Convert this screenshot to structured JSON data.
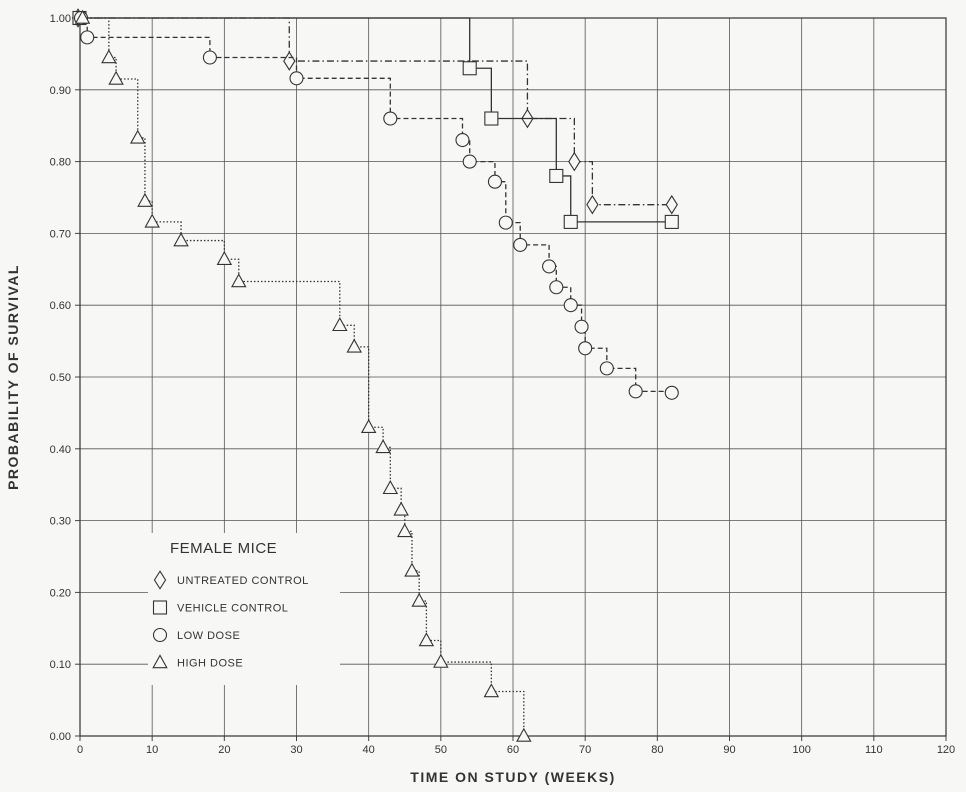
{
  "chart_data": {
    "type": "line",
    "subtype": "kaplan-meier survival step curves",
    "xlabel": "TIME ON STUDY (WEEKS)",
    "ylabel": "PROBABILITY OF SURVIVAL",
    "xlim": [
      0,
      120
    ],
    "ylim": [
      0,
      1.0
    ],
    "x_ticks": [
      "0",
      "10",
      "20",
      "30",
      "40",
      "50",
      "60",
      "70",
      "80",
      "90",
      "100",
      "110",
      "120"
    ],
    "y_ticks": [
      "0.00",
      "0.10",
      "0.20",
      "0.30",
      "0.40",
      "0.50",
      "0.60",
      "0.70",
      "0.80",
      "0.90",
      "1.00"
    ],
    "grid": true,
    "legend": {
      "title": "FEMALE MICE",
      "position": "bottom-left"
    },
    "series": [
      {
        "name": "UNTREATED CONTROL",
        "marker": "diamond",
        "line_style": "dash-dot",
        "end_x": 82,
        "points": [
          [
            0,
            1.0
          ],
          [
            29,
            0.94
          ],
          [
            62,
            0.86
          ],
          [
            68.5,
            0.8
          ],
          [
            71,
            0.74
          ],
          [
            82,
            0.74
          ]
        ]
      },
      {
        "name": "VEHICLE CONTROL",
        "marker": "square",
        "line_style": "solid",
        "end_x": 82,
        "points": [
          [
            0,
            1.0
          ],
          [
            54,
            0.93
          ],
          [
            57,
            0.86
          ],
          [
            66,
            0.78
          ],
          [
            68,
            0.716
          ],
          [
            82,
            0.716
          ]
        ]
      },
      {
        "name": "LOW DOSE",
        "marker": "circle",
        "line_style": "dashed",
        "end_x": 82,
        "points": [
          [
            0,
            1.0
          ],
          [
            1,
            0.973
          ],
          [
            18,
            0.945
          ],
          [
            30,
            0.916
          ],
          [
            43,
            0.86
          ],
          [
            53,
            0.83
          ],
          [
            54,
            0.8
          ],
          [
            57.5,
            0.772
          ],
          [
            59,
            0.715
          ],
          [
            61,
            0.684
          ],
          [
            65,
            0.654
          ],
          [
            66,
            0.625
          ],
          [
            68,
            0.6
          ],
          [
            69.5,
            0.57
          ],
          [
            70,
            0.54
          ],
          [
            73,
            0.512
          ],
          [
            77,
            0.48
          ],
          [
            82,
            0.478
          ]
        ]
      },
      {
        "name": "HIGH DOSE",
        "marker": "triangle",
        "line_style": "dotted",
        "end_x": 61.5,
        "points": [
          [
            0,
            1.0
          ],
          [
            4,
            0.945
          ],
          [
            5,
            0.915
          ],
          [
            8,
            0.833
          ],
          [
            9,
            0.745
          ],
          [
            10,
            0.716
          ],
          [
            14,
            0.69
          ],
          [
            20,
            0.664
          ],
          [
            22,
            0.633
          ],
          [
            36,
            0.572
          ],
          [
            38,
            0.542
          ],
          [
            40,
            0.43
          ],
          [
            42,
            0.402
          ],
          [
            43,
            0.345
          ],
          [
            44.5,
            0.315
          ],
          [
            45,
            0.285
          ],
          [
            46,
            0.23
          ],
          [
            47,
            0.188
          ],
          [
            48,
            0.133
          ],
          [
            50,
            0.103
          ],
          [
            57,
            0.062
          ],
          [
            61.5,
            0.0
          ]
        ]
      }
    ]
  }
}
